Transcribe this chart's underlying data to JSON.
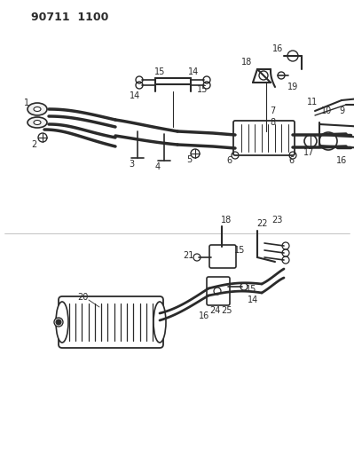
{
  "title": "90711 1100",
  "bg_color": "#ffffff",
  "line_color": "#2a2a2a",
  "figsize": [
    3.99,
    5.33
  ],
  "dpi": 100
}
